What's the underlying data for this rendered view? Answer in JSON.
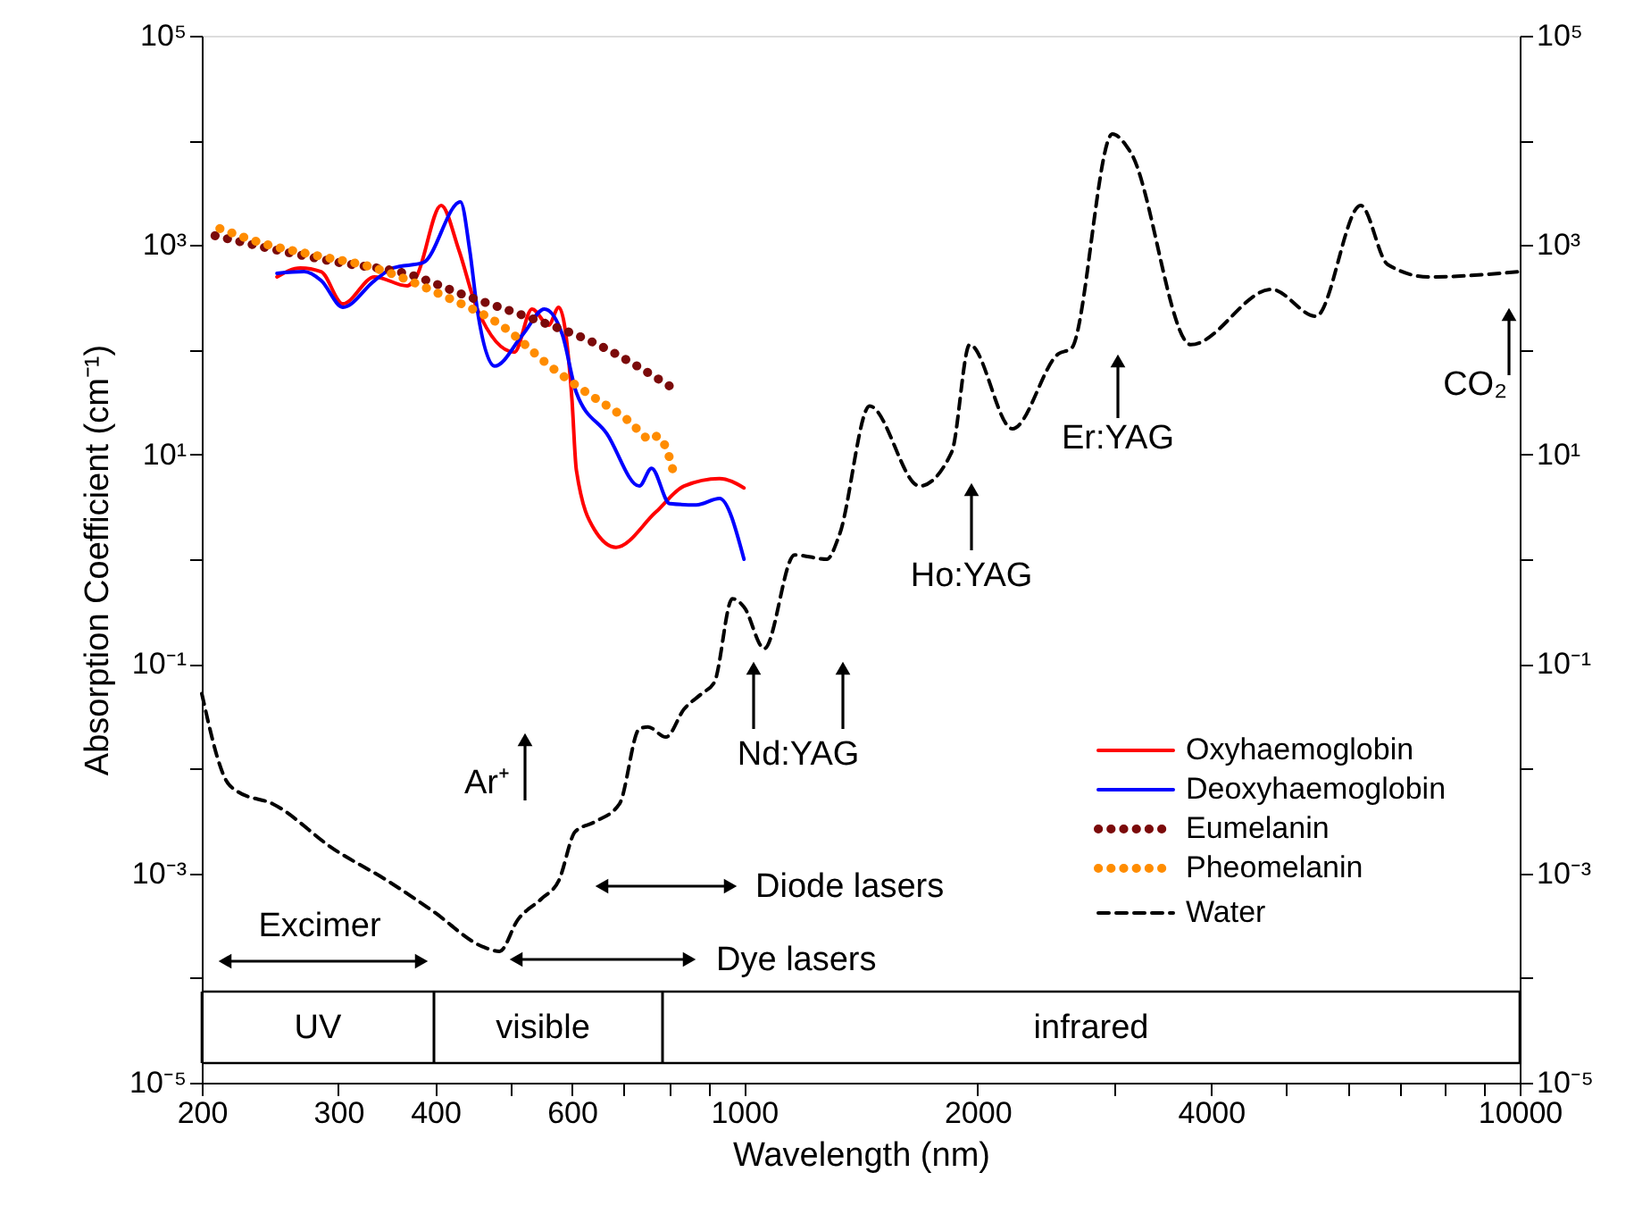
{
  "chart_data": {
    "type": "line",
    "xlabel": "Wavelength (nm)",
    "ylabel": "Absorption Coefficient (cm⁻¹)",
    "log": "xy",
    "xlim": [
      200,
      10000
    ],
    "ylim": [
      1e-05,
      100000
    ],
    "xticks": [
      200,
      300,
      400,
      {
        "value": 500,
        "label": null
      },
      600,
      {
        "value": 700,
        "label": null
      },
      {
        "value": 800,
        "label": null
      },
      {
        "value": 900,
        "label": null
      },
      1000,
      2000,
      {
        "value": 3000,
        "label": null
      },
      4000,
      {
        "value": 5000,
        "label": null
      },
      {
        "value": 6000,
        "label": null
      },
      {
        "value": 7000,
        "label": null
      },
      {
        "value": 8000,
        "label": null
      },
      {
        "value": 9000,
        "label": null
      },
      10000
    ],
    "yticks": [
      {
        "value": 1e-05,
        "label": "10⁻⁵"
      },
      {
        "value": 0.0001,
        "label": null
      },
      {
        "value": 0.001,
        "label": "10⁻³"
      },
      {
        "value": 0.01,
        "label": null
      },
      {
        "value": 0.1,
        "label": "10⁻¹"
      },
      {
        "value": 1,
        "label": null
      },
      {
        "value": 10,
        "label": "10¹"
      },
      {
        "value": 100,
        "label": null
      },
      {
        "value": 1000,
        "label": "10³"
      },
      {
        "value": 10000,
        "label": null
      },
      {
        "value": 100000,
        "label": "10⁵"
      }
    ],
    "grid": false,
    "legend": "bottom right",
    "marker": "none",
    "series": [
      {
        "name": "Oxyhaemoglobin",
        "color": "#ff0000",
        "line_style": "solid",
        "x": [
          250,
          268,
          285,
          304,
          334,
          368,
          378,
          407,
          429,
          453,
          506,
          533,
          560,
          577,
          600,
          608,
          642,
          684,
          769,
          837,
          930,
          1000
        ],
        "values": [
          497,
          605,
          558,
          275,
          497,
          408,
          497,
          2390,
          896,
          245,
          95,
          245,
          172,
          255,
          34,
          7.1,
          1.9,
          1.3,
          2.8,
          5.0,
          5.9,
          4.8
        ]
      },
      {
        "name": "Deoxyhaemoglobin",
        "color": "#0000ff",
        "line_style": "solid",
        "x": [
          250,
          271,
          285,
          304,
          334,
          353,
          386,
          431,
          443,
          453,
          477,
          519,
          553,
          583,
          608,
          666,
          733,
          760,
          802,
          868,
          930,
          1000
        ],
        "values": [
          537,
          558,
          459,
          255,
          459,
          605,
          681,
          2590,
          896,
          245,
          70,
          141,
          245,
          141,
          39,
          15.7,
          5.0,
          7.4,
          3.4,
          3.3,
          3.8,
          1.0
        ]
      },
      {
        "name": "Eumelanin",
        "color": "#7b0a0a",
        "line_style": "dotted",
        "x": [
          208,
          250,
          301,
          366,
          441,
          531,
          642,
          810
        ],
        "values": [
          1230,
          896,
          681,
          537,
          323,
          201,
          116,
          43
        ]
      },
      {
        "name": "Pheomelanin",
        "color": "#ff8c00",
        "line_style": "dotted",
        "x": [
          211,
          243,
          281,
          334,
          407,
          490,
          562,
          615,
          710,
          760,
          773,
          794,
          815
        ],
        "values": [
          1440,
          1010,
          796,
          605,
          336,
          165,
          70,
          43,
          21,
          13.9,
          15,
          11.4,
          5.9
        ]
      },
      {
        "name": "Water",
        "color": "#000000",
        "line_style": "dashed",
        "x": [
          200,
          215,
          222,
          247,
          296,
          347,
          398,
          460,
          484,
          511,
          548,
          577,
          606,
          642,
          691,
          733,
          752,
          793,
          837,
          882,
          916,
          966,
          1000,
          1062,
          1162,
          1279,
          1327,
          1452,
          1684,
          1853,
          1954,
          2218,
          2545,
          2642,
          2985,
          3148,
          3767,
          4786,
          5461,
          6237,
          6755,
          7627,
          10000
        ],
        "values": [
          0.052,
          0.0077,
          0.0061,
          0.0046,
          0.0017,
          0.00085,
          0.00043,
          0.0002,
          0.00018,
          0.00036,
          0.00057,
          0.00085,
          0.0025,
          0.0031,
          0.0046,
          0.024,
          0.025,
          0.02,
          0.037,
          0.052,
          0.067,
          0.42,
          0.35,
          0.14,
          1.1,
          1.0,
          1.7,
          29,
          5.0,
          10.6,
          112,
          17.6,
          92,
          103,
          11500,
          7780,
          112,
          378,
          209,
          2390,
          655,
          497,
          558
        ]
      }
    ],
    "annotations": [
      "Ar⁺",
      "Nd:YAG",
      "Ho:YAG",
      "Er:YAG",
      "CO₂",
      "Excimer",
      "Dye lasers",
      "Diode lasers",
      "UV",
      "visible",
      "infrared"
    ]
  }
}
